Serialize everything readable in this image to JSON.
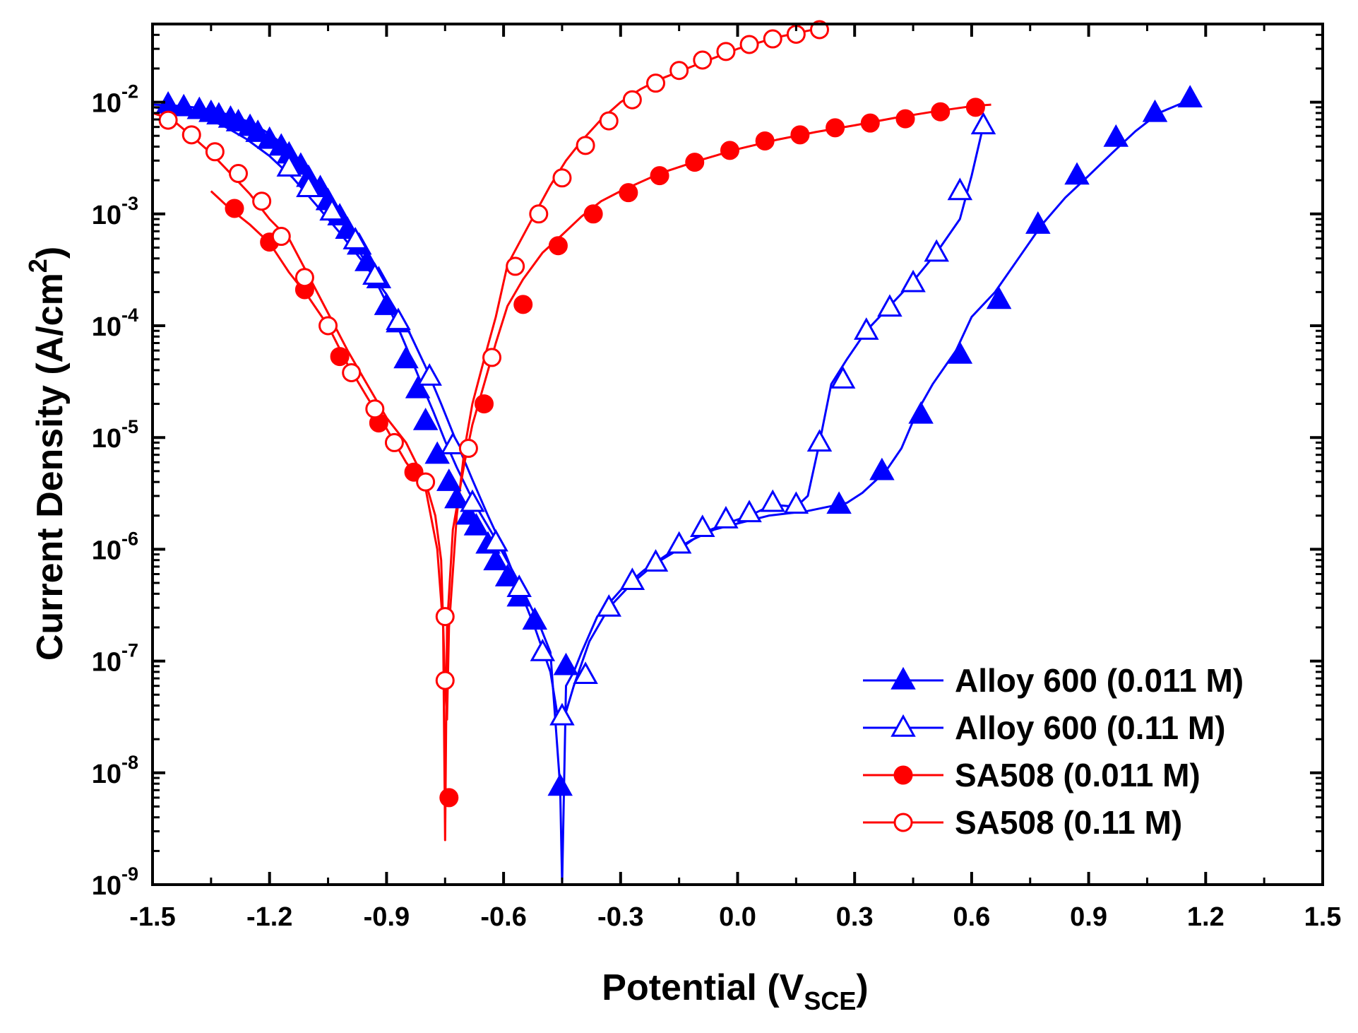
{
  "chart_data": {
    "type": "line",
    "title": "",
    "xlabel": "Potential (V",
    "xlabel_sub": "SCE",
    "xlabel_end": ")",
    "ylabel": "Current Density (A/cm",
    "ylabel_sup": "2",
    "ylabel_end": ")",
    "xlim": [
      -1.5,
      1.5
    ],
    "ylim": [
      1e-09,
      0.05
    ],
    "yscale": "log",
    "grid": false,
    "legend_position": "bottom-right",
    "x_ticks": [
      "-1.5",
      "-1.2",
      "-0.9",
      "-0.6",
      "-0.3",
      "0.0",
      "0.3",
      "0.6",
      "0.9",
      "1.2",
      "1.5"
    ],
    "x_tick_values": [
      -1.5,
      -1.2,
      -0.9,
      -0.6,
      -0.3,
      0.0,
      0.3,
      0.6,
      0.9,
      1.2,
      1.5
    ],
    "y_ticks": [
      {
        "base": "10",
        "exp": "-9",
        "value": 1e-09
      },
      {
        "base": "10",
        "exp": "-8",
        "value": 1e-08
      },
      {
        "base": "10",
        "exp": "-7",
        "value": 1e-07
      },
      {
        "base": "10",
        "exp": "-6",
        "value": 1e-06
      },
      {
        "base": "10",
        "exp": "-5",
        "value": 1e-05
      },
      {
        "base": "10",
        "exp": "-4",
        "value": 0.0001
      },
      {
        "base": "10",
        "exp": "-3",
        "value": 0.001
      },
      {
        "base": "10",
        "exp": "-2",
        "value": 0.01
      }
    ],
    "series": [
      {
        "name": "Alloy 600 (0.011 M)",
        "color": "#0000ff",
        "marker": "triangle",
        "filled": true,
        "x": [
          -1.5,
          -1.47,
          -1.44,
          -1.41,
          -1.38,
          -1.35,
          -1.32,
          -1.29,
          -1.26,
          -1.23,
          -1.2,
          -1.17,
          -1.14,
          -1.11,
          -1.08,
          -1.05,
          -1.02,
          -0.99,
          -0.96,
          -0.93,
          -0.9,
          -0.87,
          -0.84,
          -0.81,
          -0.78,
          -0.75,
          -0.72,
          -0.69,
          -0.66,
          -0.63,
          -0.6,
          -0.57,
          -0.54,
          -0.51,
          -0.48,
          -0.455,
          -0.45,
          -0.44,
          -0.42,
          -0.4,
          -0.36,
          -0.3,
          -0.24,
          -0.18,
          -0.12,
          -0.06,
          0.0,
          0.08,
          0.18,
          0.28,
          0.32,
          0.38,
          0.42,
          0.46,
          0.5,
          0.56,
          0.6,
          0.66,
          0.72,
          0.78,
          0.84,
          0.9,
          0.96,
          1.02,
          1.08,
          1.16
        ],
        "values": [
          0.0095,
          0.0094,
          0.0093,
          0.0091,
          0.0089,
          0.0085,
          0.008,
          0.0074,
          0.0068,
          0.006,
          0.0052,
          0.0043,
          0.0034,
          0.0026,
          0.0019,
          0.00135,
          0.00092,
          0.00062,
          0.0004,
          0.00026,
          0.00016,
          9.5e-05,
          5.4e-05,
          3e-05,
          1.7e-05,
          9.3e-06,
          5.4e-06,
          3.3e-06,
          2.1e-06,
          1.4e-06,
          9e-07,
          5.8e-07,
          3.6e-07,
          2.2e-07,
          1.2e-07,
          7.5e-09,
          1e-09,
          6e-08,
          8e-08,
          1.2e-07,
          2.5e-07,
          4.3e-07,
          6.5e-07,
          9e-07,
          1.2e-06,
          1.5e-06,
          1.7e-06,
          2e-06,
          2.2e-06,
          2.6e-06,
          3.2e-06,
          5e-06,
          8e-06,
          1.7e-05,
          3e-05,
          6e-05,
          0.00012,
          0.0002,
          0.0004,
          0.0008,
          0.0014,
          0.0022,
          0.0035,
          0.0055,
          0.008,
          0.0105
        ],
        "marker_x": [
          -1.46,
          -1.42,
          -1.38,
          -1.35,
          -1.33,
          -1.3,
          -1.28,
          -1.25,
          -1.23,
          -1.2,
          -1.17,
          -1.15,
          -1.12,
          -1.1,
          -1.07,
          -1.05,
          -1.02,
          -1.0,
          -0.97,
          -0.95,
          -0.92,
          -0.9,
          -0.87,
          -0.85,
          -0.82,
          -0.8,
          -0.77,
          -0.74,
          -0.72,
          -0.69,
          -0.67,
          -0.64,
          -0.62,
          -0.59,
          -0.56,
          -0.52,
          -0.44,
          -0.455,
          0.26,
          0.37,
          0.47,
          0.57,
          0.67,
          0.77,
          0.87,
          0.97,
          1.07,
          1.16
        ],
        "marker_values": [
          0.0095,
          0.009,
          0.0085,
          0.008,
          0.0076,
          0.0071,
          0.0066,
          0.006,
          0.0053,
          0.0046,
          0.004,
          0.0034,
          0.0027,
          0.0021,
          0.0017,
          0.0013,
          0.00095,
          0.00072,
          0.00052,
          0.00037,
          0.00026,
          0.00015,
          0.000105,
          5e-05,
          2.7e-05,
          1.4e-05,
          7e-06,
          4e-06,
          2.8e-06,
          2e-06,
          1.6e-06,
          1.1e-06,
          7.8e-07,
          5.6e-07,
          3.7e-07,
          2.3e-07,
          9e-08,
          7.5e-09,
          2.5e-06,
          5e-06,
          1.6e-05,
          5.5e-05,
          0.00017,
          0.0008,
          0.0022,
          0.0048,
          0.008,
          0.0108
        ]
      },
      {
        "name": "Alloy 600 (0.11 M)",
        "color": "#0000ff",
        "marker": "triangle",
        "filled": false,
        "x": [
          -1.5,
          -1.44,
          -1.38,
          -1.32,
          -1.26,
          -1.2,
          -1.14,
          -1.08,
          -1.02,
          -0.96,
          -0.9,
          -0.84,
          -0.8,
          -0.76,
          -0.72,
          -0.68,
          -0.64,
          -0.6,
          -0.56,
          -0.52,
          -0.48,
          -0.46,
          -0.44,
          -0.42,
          -0.38,
          -0.33,
          -0.27,
          -0.21,
          -0.15,
          -0.09,
          -0.03,
          0.03,
          0.09,
          0.15,
          0.18,
          0.21,
          0.24,
          0.28,
          0.33,
          0.39,
          0.45,
          0.51,
          0.57,
          0.6,
          0.63
        ],
        "values": [
          0.009,
          0.0085,
          0.0075,
          0.0062,
          0.0047,
          0.0033,
          0.0021,
          0.0012,
          0.00068,
          0.00037,
          0.00019,
          8.5e-05,
          4.3e-05,
          2e-05,
          9e-06,
          4.2e-06,
          2e-06,
          1e-06,
          4.5e-07,
          2e-07,
          8e-08,
          3e-08,
          3.5e-08,
          6e-08,
          1.5e-07,
          3e-07,
          5e-07,
          7.5e-07,
          1e-06,
          1.4e-06,
          1.7e-06,
          2e-06,
          2.5e-06,
          2.4e-06,
          3e-06,
          9e-06,
          3e-05,
          5e-05,
          9e-05,
          0.00015,
          0.00025,
          0.00045,
          0.0009,
          0.0022,
          0.0062
        ],
        "marker_x": [
          -1.15,
          -1.1,
          -1.04,
          -0.98,
          -0.93,
          -0.87,
          -0.79,
          -0.73,
          -0.68,
          -0.62,
          -0.56,
          -0.5,
          -0.45,
          -0.39,
          -0.33,
          -0.27,
          -0.21,
          -0.15,
          -0.09,
          -0.03,
          0.03,
          0.09,
          0.15,
          0.21,
          0.27,
          0.33,
          0.39,
          0.45,
          0.51,
          0.57,
          0.63
        ],
        "marker_values": [
          0.0026,
          0.0017,
          0.00105,
          0.00058,
          0.00028,
          0.00011,
          3.5e-05,
          8.5e-06,
          2.6e-06,
          1.15e-06,
          4.5e-07,
          1.2e-07,
          3.2e-08,
          7.5e-08,
          3e-07,
          5.2e-07,
          7.6e-07,
          1.1e-06,
          1.55e-06,
          1.85e-06,
          2.1e-06,
          2.6e-06,
          2.5e-06,
          9e-06,
          3.3e-05,
          9e-05,
          0.000145,
          0.00024,
          0.00045,
          0.0016,
          0.0062
        ]
      },
      {
        "name": "SA508 (0.011 M)",
        "color": "#ff0000",
        "marker": "circle",
        "filled": true,
        "x": [
          -1.35,
          -1.3,
          -1.25,
          -1.2,
          -1.15,
          -1.1,
          -1.05,
          -1.0,
          -0.95,
          -0.9,
          -0.85,
          -0.8,
          -0.77,
          -0.755,
          -0.75,
          -0.745,
          -0.73,
          -0.7,
          -0.68,
          -0.65,
          -0.62,
          -0.59,
          -0.55,
          -0.5,
          -0.45,
          -0.4,
          -0.35,
          -0.3,
          -0.2,
          -0.1,
          0.0,
          0.1,
          0.2,
          0.3,
          0.4,
          0.5,
          0.6,
          0.65
        ],
        "values": [
          0.0016,
          0.0011,
          0.0008,
          0.00055,
          0.0003,
          0.00018,
          0.0001,
          4.5e-05,
          2.3e-05,
          1.2e-05,
          6e-06,
          3.5e-06,
          1e-06,
          2e-07,
          2.5e-09,
          2e-07,
          1.5e-06,
          6e-06,
          1.3e-05,
          3e-05,
          7e-05,
          0.00015,
          0.00026,
          0.00045,
          0.00065,
          0.00095,
          0.0013,
          0.0016,
          0.0023,
          0.003,
          0.0038,
          0.0046,
          0.0054,
          0.0062,
          0.0072,
          0.0082,
          0.0092,
          0.0095
        ],
        "marker_x": [
          -1.29,
          -1.2,
          -1.11,
          -1.02,
          -0.92,
          -0.83,
          -0.74,
          -0.65,
          -0.55,
          -0.46,
          -0.37,
          -0.28,
          -0.2,
          -0.11,
          -0.02,
          0.07,
          0.16,
          0.25,
          0.34,
          0.43,
          0.52,
          0.61
        ],
        "marker_values": [
          0.00112,
          0.00056,
          0.00021,
          5.3e-05,
          1.35e-05,
          4.9e-06,
          6e-09,
          2e-05,
          0.000155,
          0.00052,
          0.001,
          0.00155,
          0.0022,
          0.0029,
          0.0037,
          0.0045,
          0.0051,
          0.0059,
          0.0065,
          0.0071,
          0.0082,
          0.009
        ]
      },
      {
        "name": "SA508 (0.11 M)",
        "color": "#ff0000",
        "marker": "circle",
        "filled": false,
        "x": [
          -1.5,
          -1.45,
          -1.4,
          -1.35,
          -1.3,
          -1.25,
          -1.2,
          -1.15,
          -1.1,
          -1.05,
          -1.0,
          -0.95,
          -0.9,
          -0.85,
          -0.8,
          -0.775,
          -0.76,
          -0.75,
          -0.745,
          -0.74,
          -0.72,
          -0.7,
          -0.68,
          -0.65,
          -0.62,
          -0.59,
          -0.56,
          -0.52,
          -0.48,
          -0.44,
          -0.4,
          -0.35,
          -0.3,
          -0.25,
          -0.2,
          -0.1,
          0.0,
          0.1,
          0.2,
          0.23
        ],
        "values": [
          0.008,
          0.007,
          0.005,
          0.0035,
          0.0023,
          0.0015,
          0.0009,
          0.0006,
          0.00028,
          0.00013,
          6e-05,
          3e-05,
          1.5e-05,
          9e-06,
          4e-06,
          2e-06,
          8e-07,
          6e-08,
          3e-08,
          2e-07,
          2e-06,
          8e-06,
          2e-05,
          5e-05,
          0.00012,
          0.00035,
          0.00055,
          0.001,
          0.0018,
          0.003,
          0.0045,
          0.007,
          0.01,
          0.013,
          0.016,
          0.022,
          0.03,
          0.038,
          0.045,
          0.047
        ],
        "marker_x": [
          -1.46,
          -1.4,
          -1.34,
          -1.28,
          -1.22,
          -1.17,
          -1.11,
          -1.05,
          -0.99,
          -0.93,
          -0.88,
          -0.8,
          -0.75,
          -0.75,
          -0.69,
          -0.63,
          -0.57,
          -0.51,
          -0.45,
          -0.39,
          -0.33,
          -0.27,
          -0.21,
          -0.15,
          -0.09,
          -0.03,
          0.03,
          0.09,
          0.15,
          0.21
        ],
        "marker_values": [
          0.0069,
          0.0051,
          0.0036,
          0.0023,
          0.0013,
          0.00063,
          0.00027,
          0.0001,
          3.8e-05,
          1.8e-05,
          9e-06,
          4e-06,
          2.5e-07,
          6.7e-08,
          8e-06,
          5.2e-05,
          0.00034,
          0.001,
          0.0021,
          0.0041,
          0.0068,
          0.0105,
          0.0148,
          0.0192,
          0.0238,
          0.0284,
          0.0328,
          0.0368,
          0.0405,
          0.0445
        ]
      }
    ]
  }
}
